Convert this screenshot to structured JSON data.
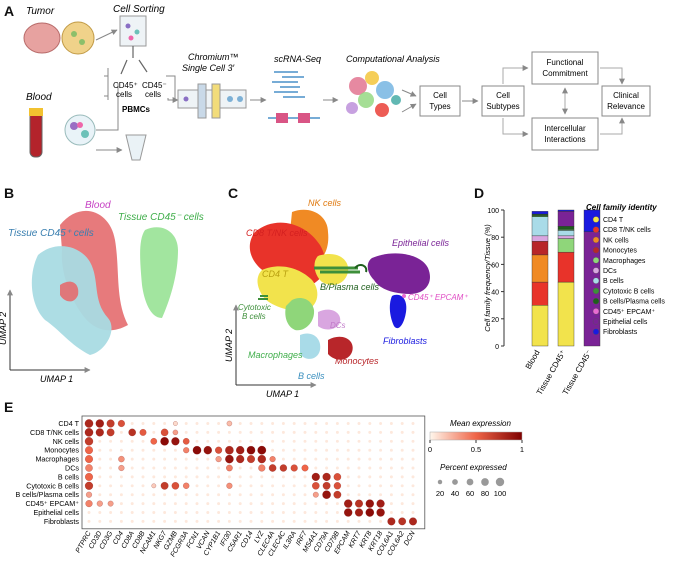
{
  "panel_labels": {
    "a": "A",
    "b": "B",
    "c": "C",
    "d": "D",
    "e": "E"
  },
  "panel_a": {
    "tumor": "Tumor",
    "blood": "Blood",
    "cell_sorting": "Cell Sorting",
    "cd45_pos_1": "CD45⁺",
    "cd45_pos_2": "cells",
    "cd45_neg_1": "CD45⁻",
    "cd45_neg_2": "cells",
    "pbmcs": "PBMCs",
    "chromium_1": "Chromium™",
    "chromium_2": "Single Cell 3′",
    "scrnaseq": "scRNA-Seq",
    "comp": "Computational Analysis",
    "cell_types_1": "Cell",
    "cell_types_2": "Types",
    "cell_subtypes_1": "Cell",
    "cell_subtypes_2": "Subtypes",
    "functional_1": "Functional",
    "functional_2": "Commitment",
    "clinical_1": "Clinical",
    "clinical_2": "Relevance",
    "intercell_1": "Intercellular",
    "intercell_2": "Interactions"
  },
  "panel_b": {
    "blood": "Blood",
    "tissue_pos": "Tissue CD45⁺ cells",
    "tissue_neg": "Tissue CD45⁻ cells",
    "umap1": "UMAP 1",
    "umap2": "UMAP 2"
  },
  "panel_c": {
    "nk": "NK cells",
    "cd8": "CD8 T/NK cells",
    "epi": "Epithelial cells",
    "cd4": "CD4 T",
    "bplasma": "B/Plasma cells",
    "cd45epcam": "CD45⁺ EPCAM⁺",
    "cyto1": "Cytotoxic",
    "cyto2": "B cells",
    "dcs": "DCs",
    "fibro": "Fibroblasts",
    "macro": "Macrophages",
    "mono": "Monocytes",
    "bcells": "B cells",
    "umap1": "UMAP 1",
    "umap2": "UMAP 2"
  },
  "chart_data": [
    {
      "type": "bar",
      "stacked": true,
      "ylabel": "Cell family frequency/Tissue (%)",
      "ylim": [
        0,
        100
      ],
      "yticks": [
        0,
        20,
        40,
        60,
        80,
        100
      ],
      "categories": [
        "Blood",
        "Tissue CD45⁺",
        "Tissue CD45⁻"
      ],
      "legend_title": "Cell family identity",
      "series": [
        {
          "name": "CD4 T",
          "color": "#f2e34c",
          "values": [
            30,
            47,
            0
          ]
        },
        {
          "name": "CD8 T/NK cells",
          "color": "#e8332a",
          "values": [
            17,
            22,
            0
          ]
        },
        {
          "name": "NK cells",
          "color": "#f08a24",
          "values": [
            20,
            0,
            0
          ]
        },
        {
          "name": "Monocytes",
          "color": "#b8262a",
          "values": [
            10,
            0,
            0
          ]
        },
        {
          "name": "Macrophages",
          "color": "#8fd67a",
          "values": [
            0,
            10,
            0
          ]
        },
        {
          "name": "DCs",
          "color": "#d9a6e0",
          "values": [
            4,
            2,
            0
          ]
        },
        {
          "name": "B cells",
          "color": "#a9dbe8",
          "values": [
            14,
            4,
            0
          ]
        },
        {
          "name": "Cytotoxic B cells",
          "color": "#3d8f3a",
          "values": [
            1,
            1,
            0
          ]
        },
        {
          "name": "B cells/Plasma cells",
          "color": "#1e5e1c",
          "values": [
            1,
            2,
            0
          ]
        },
        {
          "name": "CD45⁺ EPCAM⁺",
          "color": "#e86bd2",
          "values": [
            0,
            0,
            0
          ]
        },
        {
          "name": "Epithelial cells",
          "color": "#7a2396",
          "values": [
            0,
            11,
            84
          ]
        },
        {
          "name": "Fibroblasts",
          "color": "#1a1ae0",
          "values": [
            2,
            1,
            16
          ]
        }
      ]
    },
    {
      "type": "heatmap",
      "subtype": "dotplot",
      "rows": [
        "CD4 T",
        "CD8 T/NK cells",
        "NK cells",
        "Monocytes",
        "Macrophages",
        "DCs",
        "B cells",
        "Cytotoxic B cells",
        "B cells/Plasma cells",
        "CD45⁺ EPCAM⁺",
        "Epithelial cells",
        "Fibroblasts"
      ],
      "columns": [
        "PTPRC",
        "CD3D",
        "CD3G",
        "CD4",
        "CD8A",
        "CD8B",
        "NCAM1",
        "NKG7",
        "GZMB",
        "FCGR3A",
        "FCN1",
        "VCAN",
        "CYP1B1",
        "IFI30",
        "C5AR1",
        "CD14",
        "LYZ",
        "CLEC4A",
        "CLEC4C",
        "IL3RA",
        "IRF7",
        "MS4A1",
        "CD79A",
        "CD79B",
        "EPCAM",
        "KRT7",
        "KRT8",
        "KRT18",
        "COL6A1",
        "COL6A2",
        "DCN"
      ],
      "color_legend_title": "Mean expression",
      "color_ticks": [
        "0",
        "0.5",
        "1"
      ],
      "size_legend_title": "Percent expressed",
      "size_ticks": [
        "20",
        "40",
        "60",
        "80",
        "100"
      ],
      "dots": [
        [
          0,
          0,
          0.8,
          95
        ],
        [
          0,
          1,
          0.85,
          90
        ],
        [
          0,
          2,
          0.7,
          80
        ],
        [
          0,
          3,
          0.6,
          60
        ],
        [
          0,
          8,
          0.1,
          20
        ],
        [
          0,
          13,
          0.2,
          30
        ],
        [
          1,
          0,
          0.8,
          95
        ],
        [
          1,
          1,
          0.8,
          85
        ],
        [
          1,
          2,
          0.7,
          75
        ],
        [
          1,
          4,
          0.75,
          70
        ],
        [
          1,
          5,
          0.55,
          55
        ],
        [
          1,
          7,
          0.6,
          70
        ],
        [
          1,
          8,
          0.3,
          30
        ],
        [
          2,
          0,
          0.7,
          90
        ],
        [
          2,
          6,
          0.5,
          50
        ],
        [
          2,
          7,
          0.95,
          95
        ],
        [
          2,
          8,
          0.9,
          85
        ],
        [
          2,
          9,
          0.55,
          50
        ],
        [
          3,
          0,
          0.5,
          80
        ],
        [
          3,
          9,
          0.4,
          40
        ],
        [
          3,
          10,
          0.95,
          95
        ],
        [
          3,
          11,
          0.9,
          90
        ],
        [
          3,
          12,
          0.6,
          60
        ],
        [
          3,
          13,
          0.8,
          95
        ],
        [
          3,
          14,
          0.85,
          90
        ],
        [
          3,
          15,
          0.95,
          95
        ],
        [
          3,
          16,
          0.95,
          100
        ],
        [
          4,
          0,
          0.5,
          80
        ],
        [
          4,
          3,
          0.35,
          45
        ],
        [
          4,
          12,
          0.3,
          40
        ],
        [
          4,
          13,
          0.9,
          95
        ],
        [
          4,
          14,
          0.8,
          85
        ],
        [
          4,
          15,
          0.7,
          80
        ],
        [
          4,
          16,
          0.8,
          90
        ],
        [
          4,
          17,
          0.4,
          40
        ],
        [
          5,
          0,
          0.4,
          70
        ],
        [
          5,
          3,
          0.3,
          40
        ],
        [
          5,
          13,
          0.4,
          50
        ],
        [
          5,
          16,
          0.4,
          60
        ],
        [
          5,
          17,
          0.7,
          70
        ],
        [
          5,
          18,
          0.7,
          65
        ],
        [
          5,
          19,
          0.6,
          60
        ],
        [
          5,
          20,
          0.5,
          55
        ],
        [
          6,
          0,
          0.5,
          80
        ],
        [
          6,
          21,
          0.85,
          85
        ],
        [
          6,
          22,
          0.8,
          85
        ],
        [
          6,
          23,
          0.6,
          70
        ],
        [
          7,
          0,
          0.7,
          85
        ],
        [
          7,
          6,
          0.15,
          20
        ],
        [
          7,
          7,
          0.7,
          75
        ],
        [
          7,
          8,
          0.6,
          70
        ],
        [
          7,
          9,
          0.4,
          45
        ],
        [
          7,
          13,
          0.35,
          40
        ],
        [
          7,
          21,
          0.6,
          70
        ],
        [
          7,
          22,
          0.7,
          75
        ],
        [
          7,
          23,
          0.6,
          65
        ],
        [
          8,
          0,
          0.3,
          40
        ],
        [
          8,
          21,
          0.3,
          35
        ],
        [
          8,
          22,
          0.9,
          95
        ],
        [
          8,
          23,
          0.7,
          75
        ],
        [
          9,
          0,
          0.4,
          60
        ],
        [
          9,
          1,
          0.3,
          40
        ],
        [
          9,
          2,
          0.3,
          35
        ],
        [
          9,
          24,
          0.85,
          90
        ],
        [
          9,
          25,
          0.75,
          80
        ],
        [
          9,
          26,
          0.9,
          90
        ],
        [
          9,
          27,
          0.85,
          85
        ],
        [
          10,
          24,
          0.9,
          90
        ],
        [
          10,
          25,
          0.85,
          85
        ],
        [
          10,
          26,
          0.95,
          95
        ],
        [
          10,
          27,
          0.9,
          90
        ],
        [
          11,
          28,
          0.8,
          80
        ],
        [
          11,
          29,
          0.75,
          75
        ],
        [
          11,
          30,
          0.8,
          80
        ]
      ]
    }
  ]
}
